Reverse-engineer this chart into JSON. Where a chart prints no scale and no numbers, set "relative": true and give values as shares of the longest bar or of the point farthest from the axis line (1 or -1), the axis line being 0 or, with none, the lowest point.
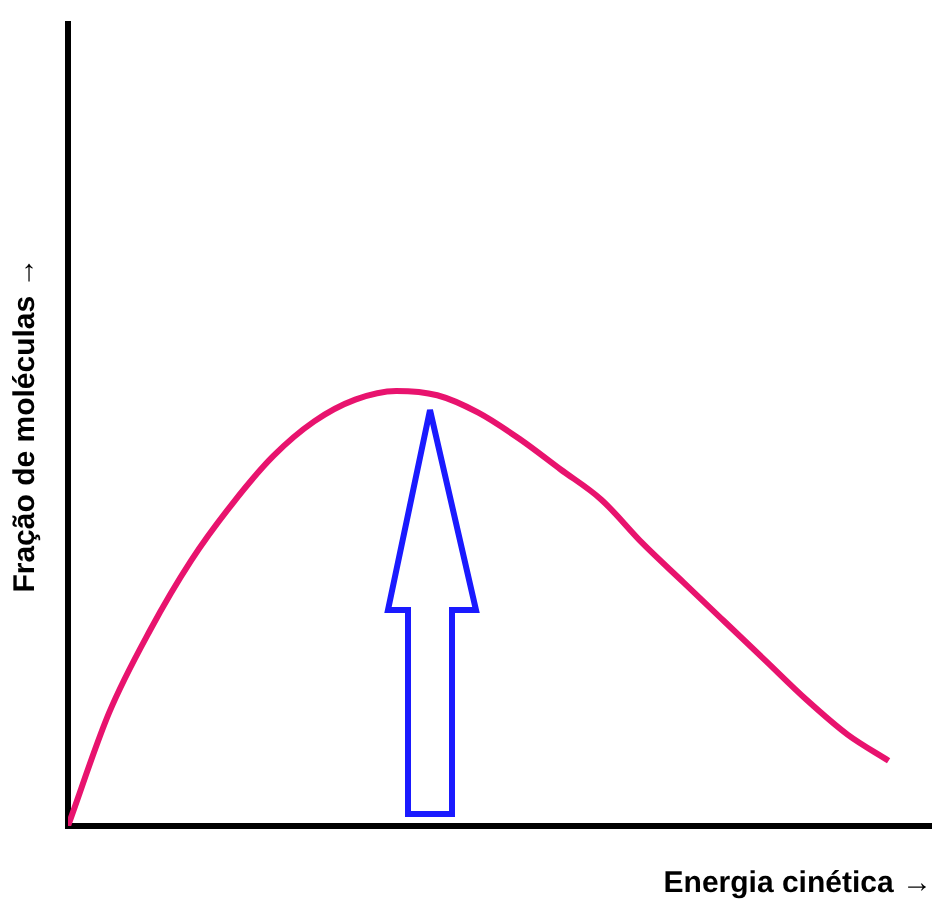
{
  "chart_data": {
    "type": "line",
    "relative": true,
    "xlabel": "Energia cinética →",
    "ylabel": "Fração de moléculas →",
    "categories": [
      null,
      null,
      null,
      null,
      null,
      null,
      null,
      null,
      null,
      null,
      null,
      null,
      null,
      null,
      null,
      null,
      null,
      null,
      null,
      null,
      null
    ],
    "series": [
      {
        "color": "#e8136e",
        "values": [
          0,
          0.26,
          0.45,
          0.61,
          0.74,
          0.85,
          0.93,
          0.98,
          1,
          0.99,
          0.95,
          0.89,
          0.82,
          0.75,
          0.65,
          0.56,
          0.47,
          0.38,
          0.29,
          0.21,
          0.15
        ]
      }
    ],
    "grid": false,
    "legend": false,
    "marker": "none",
    "line_style": "solid"
  }
}
